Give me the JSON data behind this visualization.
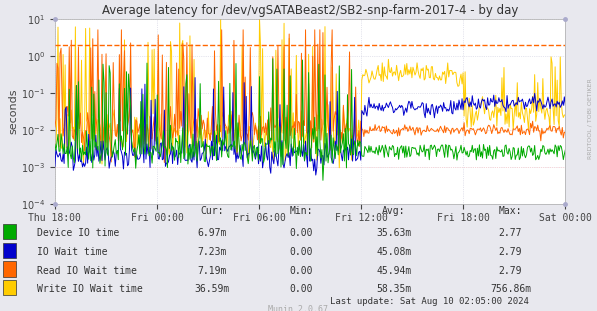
{
  "title": "Average latency for /dev/vgSATABeast2/SB2-snp-farm-2017-4 - by day",
  "ylabel": "seconds",
  "right_label": "RRDTOOL / TOBI OETIKER",
  "x_ticks": [
    "Thu 18:00",
    "Fri 00:00",
    "Fri 06:00",
    "Fri 12:00",
    "Fri 18:00",
    "Sat 00:00"
  ],
  "bg_color": "#e8e8ee",
  "plot_bg_color": "#ffffff",
  "grid_color": "#ccccdd",
  "dashed_line_color": "#ff6600",
  "dashed_line_y": 2.0,
  "legend_labels": [
    "Device IO time",
    "IO Wait time",
    "Read IO Wait time",
    "Write IO Wait time"
  ],
  "legend_colors": [
    "#00aa00",
    "#0000cc",
    "#ff6600",
    "#ffcc00"
  ],
  "cur_values": [
    "6.97m",
    "7.23m",
    "7.19m",
    "36.59m"
  ],
  "min_values": [
    "0.00",
    "0.00",
    "0.00",
    "0.00"
  ],
  "avg_values": [
    "35.63m",
    "45.08m",
    "45.94m",
    "58.35m"
  ],
  "max_values": [
    "2.77",
    "2.79",
    "2.79",
    "756.86m"
  ],
  "footer_text": "Munin 2.0.67",
  "last_update": "Last update: Sat Aug 10 02:05:00 2024",
  "num_points": 500,
  "seed": 42
}
